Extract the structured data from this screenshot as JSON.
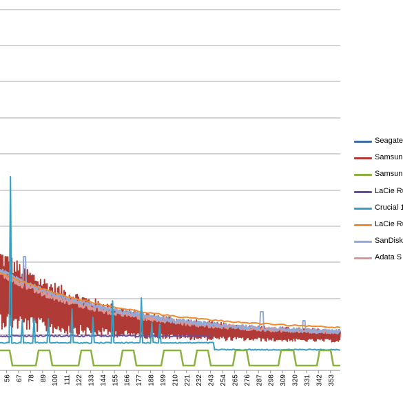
{
  "chart_data": {
    "type": "line",
    "title": "",
    "xlabel": "",
    "ylabel": "",
    "grid": "horizontal",
    "legend_position": "right",
    "x_range": [
      50,
      362
    ],
    "x_ticks": [
      56,
      67,
      78,
      89,
      100,
      111,
      122,
      133,
      144,
      155,
      166,
      177,
      188,
      199,
      210,
      221,
      232,
      243,
      254,
      265,
      276,
      287,
      298,
      309,
      320,
      331,
      342,
      353
    ],
    "series": [
      {
        "name": "Seagate",
        "color": "#3A6EA5"
      },
      {
        "name": "Samsun",
        "color": "#B03A35"
      },
      {
        "name": "Samsun",
        "color": "#8DB13F"
      },
      {
        "name": "LaCie Ru",
        "color": "#6A4C9C"
      },
      {
        "name": "Crucial 1",
        "color": "#3A9FBF"
      },
      {
        "name": "LaCie Ru",
        "color": "#EF8A2E"
      },
      {
        "name": "SanDisk",
        "color": "#93A9D8"
      },
      {
        "name": "Adata S",
        "color": "#D99694"
      }
    ]
  }
}
